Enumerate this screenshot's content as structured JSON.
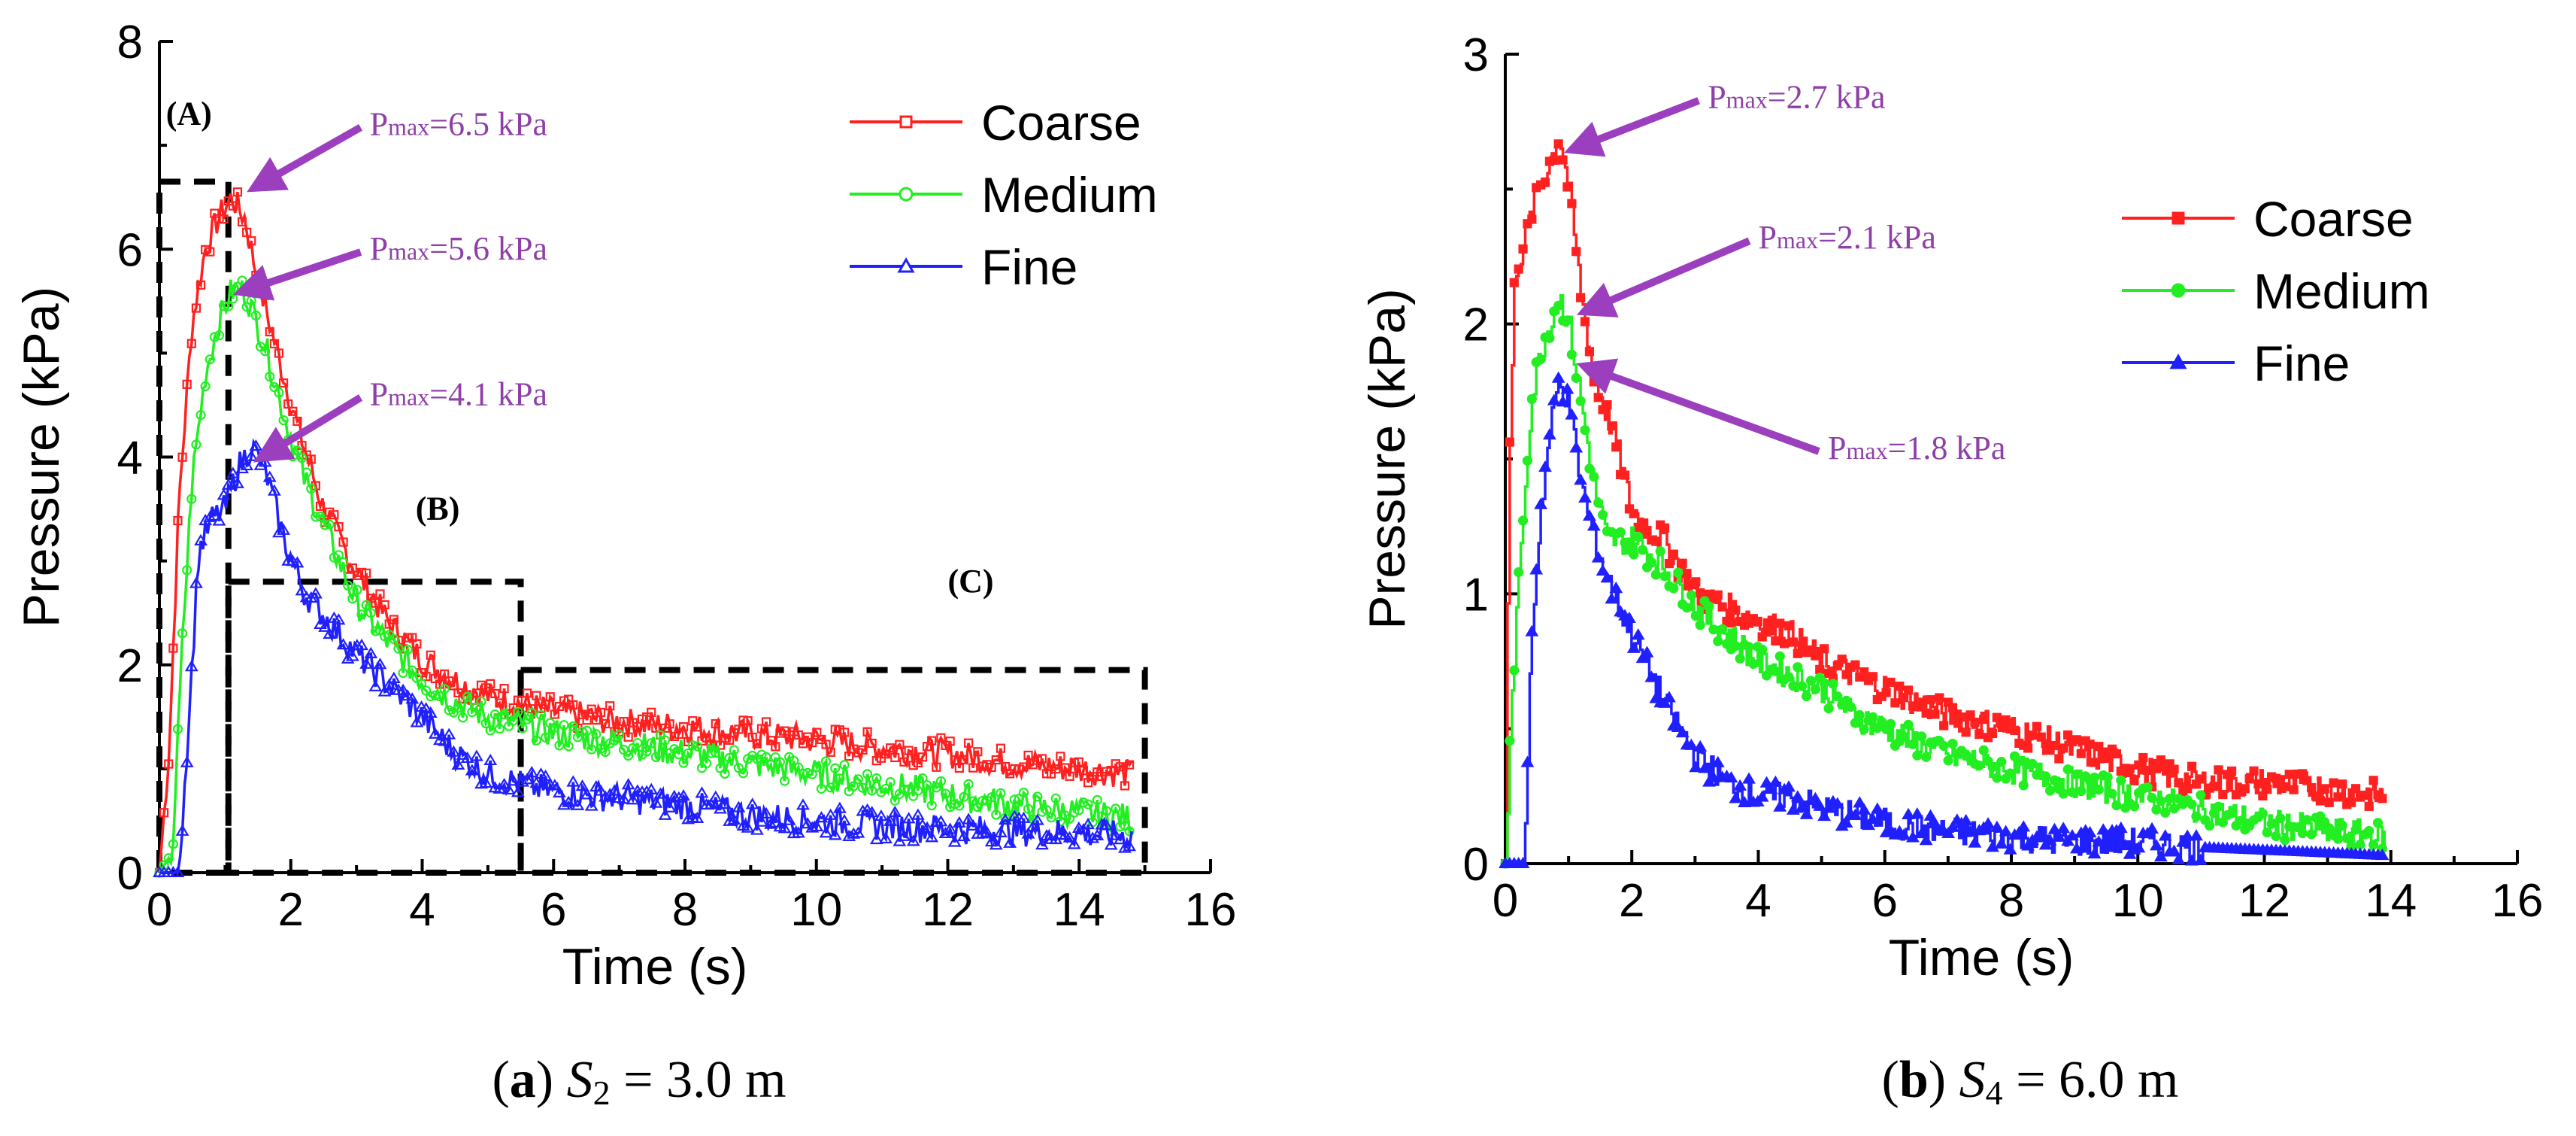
{
  "chart_data": [
    {
      "type": "line",
      "panel_label": "(a)",
      "caption": {
        "label": "a",
        "variable": "S",
        "subscript": "2",
        "rest": " = 3.0 m"
      },
      "xlabel": "Time (s)",
      "ylabel": "Pressure (kPa)",
      "xlim": [
        0,
        16
      ],
      "ylim": [
        0,
        8
      ],
      "xticks": [
        0,
        2,
        4,
        6,
        8,
        10,
        12,
        14,
        16
      ],
      "yticks": [
        0,
        2,
        4,
        6,
        8
      ],
      "legend_position": "top-right",
      "marker": "open",
      "colors": {
        "Coarse": "#ff2020",
        "Medium": "#22ee22",
        "Fine": "#2020ff",
        "annotation": "#8e3fa8",
        "arrow": "#9b3fbf"
      },
      "series": [
        {
          "name": "Coarse",
          "x": [
            0,
            0.15,
            0.3,
            0.5,
            0.7,
            0.9,
            1.1,
            1.3,
            1.5,
            1.8,
            2.1,
            2.5,
            3.0,
            3.5,
            4.0,
            4.5,
            5.0,
            6.0,
            7.0,
            8.0,
            9.0,
            10.0,
            11.0,
            12.0,
            13.0,
            14.0,
            14.8
          ],
          "y": [
            0,
            1.2,
            3.6,
            5.3,
            6.0,
            6.3,
            6.5,
            6.3,
            5.7,
            5.0,
            4.3,
            3.5,
            2.9,
            2.4,
            2.05,
            1.85,
            1.7,
            1.55,
            1.45,
            1.4,
            1.33,
            1.28,
            1.2,
            1.15,
            1.05,
            1.0,
            0.95
          ]
        },
        {
          "name": "Medium",
          "x": [
            0,
            0.2,
            0.35,
            0.5,
            0.7,
            0.9,
            1.1,
            1.3,
            1.6,
            1.9,
            2.2,
            2.6,
            3.0,
            3.5,
            4.0,
            4.5,
            5.0,
            6.0,
            7.0,
            8.0,
            9.0,
            10.0,
            11.0,
            12.0,
            13.0,
            14.0,
            14.8
          ],
          "y": [
            0,
            0.2,
            2.2,
            3.8,
            4.8,
            5.3,
            5.6,
            5.6,
            5.1,
            4.4,
            3.8,
            3.2,
            2.6,
            2.2,
            1.85,
            1.65,
            1.5,
            1.35,
            1.25,
            1.15,
            1.05,
            0.95,
            0.85,
            0.75,
            0.65,
            0.58,
            0.52
          ]
        },
        {
          "name": "Fine",
          "x": [
            0,
            0.3,
            0.45,
            0.6,
            0.8,
            1.0,
            1.2,
            1.4,
            1.6,
            1.9,
            2.2,
            2.6,
            3.0,
            3.5,
            4.0,
            4.5,
            5.0,
            5.5,
            6.0,
            7.0,
            8.0,
            9.0,
            10.0,
            11.0,
            12.0,
            13.0,
            14.0,
            14.8
          ],
          "y": [
            0,
            0,
            1.5,
            3.1,
            3.4,
            3.5,
            3.9,
            4.1,
            3.9,
            3.2,
            2.7,
            2.4,
            2.1,
            1.8,
            1.5,
            1.15,
            0.95,
            0.85,
            0.78,
            0.72,
            0.65,
            0.55,
            0.5,
            0.45,
            0.42,
            0.4,
            0.38,
            0.35
          ]
        }
      ],
      "annotations": [
        {
          "text": "P",
          "sub": "max",
          "value": "=6.5 kPa",
          "x": 3.2,
          "y": 7.1,
          "arrow_to": [
            1.2,
            6.6
          ]
        },
        {
          "text": "P",
          "sub": "max",
          "value": "=5.6 kPa",
          "x": 3.2,
          "y": 5.9,
          "arrow_to": [
            1.0,
            5.6
          ]
        },
        {
          "text": "P",
          "sub": "max",
          "value": "=4.1 kPa",
          "x": 3.2,
          "y": 4.5,
          "arrow_to": [
            1.3,
            4.0
          ]
        }
      ],
      "regions": [
        {
          "label": "(A)",
          "x0": 0,
          "x1": 1.05,
          "y_top": 6.65,
          "label_x": 0.1,
          "label_y": 7.2
        },
        {
          "label": "(B)",
          "x0": 1.05,
          "x1": 5.5,
          "y_top": 2.8,
          "label_x": 3.9,
          "label_y": 3.4
        },
        {
          "label": "(C)",
          "x0": 5.5,
          "x1": 15.0,
          "y_top": 1.95,
          "label_x": 12.0,
          "label_y": 2.7
        }
      ]
    },
    {
      "type": "line",
      "panel_label": "(b)",
      "caption": {
        "label": "b",
        "variable": "S",
        "subscript": "4",
        "rest": " = 6.0 m"
      },
      "xlabel": "Time (s)",
      "ylabel": "Pressure (kPa)",
      "xlim": [
        0,
        16
      ],
      "ylim": [
        0,
        3
      ],
      "xticks": [
        0,
        2,
        4,
        6,
        8,
        10,
        12,
        14,
        16
      ],
      "yticks": [
        0,
        1,
        2,
        3
      ],
      "legend_position": "top-right",
      "marker": "filled",
      "colors": {
        "Coarse": "#ff2020",
        "Medium": "#22ee22",
        "Fine": "#2020ff",
        "annotation": "#8e3fa8",
        "arrow": "#9b3fbf"
      },
      "series": [
        {
          "name": "Coarse",
          "x": [
            0,
            0.05,
            0.15,
            0.3,
            0.5,
            0.7,
            0.85,
            1.0,
            1.2,
            1.4,
            1.7,
            2.0,
            2.5,
            3.0,
            3.5,
            4.0,
            4.5,
            5.0,
            5.5,
            6.0,
            7.0,
            8.0,
            9.0,
            10.0,
            11.0,
            12.0,
            13.0,
            13.9
          ],
          "y": [
            0,
            1.4,
            2.2,
            2.3,
            2.5,
            2.6,
            2.7,
            2.5,
            2.1,
            1.8,
            1.6,
            1.3,
            1.2,
            1.0,
            0.95,
            0.9,
            0.85,
            0.75,
            0.7,
            0.65,
            0.55,
            0.5,
            0.42,
            0.35,
            0.3,
            0.3,
            0.28,
            0.25
          ]
        },
        {
          "name": "Medium",
          "x": [
            0,
            0.1,
            0.25,
            0.4,
            0.55,
            0.7,
            0.85,
            1.0,
            1.2,
            1.4,
            1.6,
            2.0,
            2.5,
            3.0,
            3.5,
            4.0,
            4.5,
            5.0,
            5.5,
            6.0,
            7.0,
            8.0,
            9.0,
            10.0,
            11.0,
            12.0,
            13.0,
            13.9
          ],
          "y": [
            0,
            0.6,
            1.2,
            1.7,
            1.9,
            2.0,
            2.1,
            2.0,
            1.7,
            1.4,
            1.2,
            1.2,
            1.1,
            0.95,
            0.85,
            0.75,
            0.7,
            0.65,
            0.55,
            0.5,
            0.4,
            0.35,
            0.3,
            0.25,
            0.2,
            0.15,
            0.12,
            0.1
          ]
        },
        {
          "name": "Fine",
          "x": [
            0,
            0.3,
            0.4,
            0.55,
            0.7,
            0.85,
            1.0,
            1.2,
            1.4,
            1.7,
            2.0,
            2.5,
            3.0,
            3.5,
            4.0,
            4.5,
            5.0,
            5.5,
            6.0,
            7.0,
            8.0,
            9.0,
            10.0,
            11.0,
            12.0,
            13.0,
            13.9
          ],
          "y": [
            0,
            0,
            0.8,
            1.3,
            1.6,
            1.8,
            1.7,
            1.4,
            1.2,
            1.0,
            0.85,
            0.6,
            0.4,
            0.3,
            0.25,
            0.25,
            0.2,
            0.18,
            0.15,
            0.12,
            0.1,
            0.08,
            0.08,
            0.06,
            0.05,
            0.04,
            0.03
          ]
        }
      ],
      "annotations": [
        {
          "text": "P",
          "sub": "max",
          "value": "=2.7 kPa",
          "x": 3.2,
          "y": 2.8,
          "arrow_to": [
            0.8,
            2.65
          ]
        },
        {
          "text": "P",
          "sub": "max",
          "value": "=2.1 kPa",
          "x": 4.0,
          "y": 2.28,
          "arrow_to": [
            1.0,
            2.05
          ]
        },
        {
          "text": "P",
          "sub": "max",
          "value": "=1.8 kPa",
          "x": 5.1,
          "y": 1.5,
          "arrow_to": [
            1.0,
            1.85
          ]
        }
      ],
      "regions": []
    }
  ]
}
